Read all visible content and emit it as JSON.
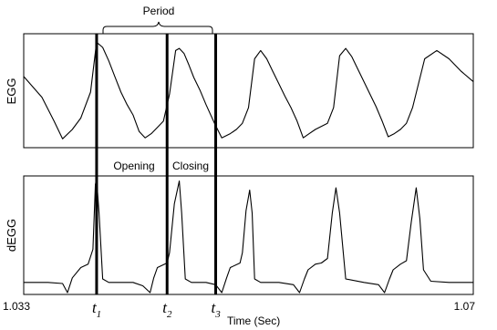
{
  "chart_data": [
    {
      "type": "line",
      "ylabel": "EGG",
      "xlim": [
        1.033,
        1.07
      ],
      "series": [
        {
          "x": [
            1.033,
            1.0345,
            1.0355,
            1.0362,
            1.037,
            1.0377,
            1.0385,
            1.039,
            1.0395,
            1.04,
            1.0405,
            1.041,
            1.0415,
            1.042,
            1.0425,
            1.043,
            1.0435,
            1.044,
            1.0445,
            1.045,
            1.0455,
            1.0458,
            1.0462,
            1.0466,
            1.047,
            1.0475,
            1.048,
            1.0487,
            1.0493,
            1.05,
            1.0505,
            1.051,
            1.0515,
            1.052,
            1.0525,
            1.053,
            1.0535,
            1.054,
            1.0545,
            1.055,
            1.0555,
            1.056,
            1.0565,
            1.057,
            1.058,
            1.0585,
            1.059,
            1.0595,
            1.06,
            1.0605,
            1.061,
            1.0615,
            1.062,
            1.0625,
            1.063,
            1.0635,
            1.064,
            1.0645,
            1.065,
            1.066,
            1.067,
            1.068,
            1.069,
            1.07
          ],
          "values": [
            0.65,
            0.45,
            0.22,
            0.05,
            0.14,
            0.25,
            0.5,
            0.98,
            0.93,
            0.8,
            0.65,
            0.5,
            0.38,
            0.28,
            0.12,
            0.06,
            0.1,
            0.16,
            0.22,
            0.48,
            0.9,
            0.92,
            0.87,
            0.76,
            0.64,
            0.52,
            0.38,
            0.2,
            0.06,
            0.1,
            0.14,
            0.2,
            0.35,
            0.82,
            0.9,
            0.82,
            0.7,
            0.58,
            0.46,
            0.35,
            0.22,
            0.06,
            0.1,
            0.14,
            0.2,
            0.35,
            0.85,
            0.92,
            0.84,
            0.72,
            0.6,
            0.48,
            0.36,
            0.22,
            0.07,
            0.1,
            0.14,
            0.2,
            0.35,
            0.82,
            0.9,
            0.82,
            0.7,
            0.6
          ]
        }
      ]
    },
    {
      "type": "line",
      "xlabel": "Time (Sec)",
      "ylabel": "dEGG",
      "xlim": [
        1.033,
        1.07
      ],
      "series": [
        {
          "x": [
            1.033,
            1.035,
            1.0362,
            1.0366,
            1.037,
            1.0377,
            1.0383,
            1.0387,
            1.0389,
            1.039,
            1.0392,
            1.0395,
            1.04,
            1.042,
            1.0428,
            1.0434,
            1.0437,
            1.044,
            1.0448,
            1.045,
            1.0454,
            1.0458,
            1.046,
            1.0463,
            1.0468,
            1.048,
            1.0488,
            1.0493,
            1.0497,
            1.05,
            1.0508,
            1.051,
            1.0513,
            1.0516,
            1.0518,
            1.052,
            1.0525,
            1.054,
            1.0552,
            1.0557,
            1.0561,
            1.0564,
            1.057,
            1.0575,
            1.058,
            1.0584,
            1.0587,
            1.059,
            1.0595,
            1.061,
            1.0622,
            1.0627,
            1.0631,
            1.0634,
            1.064,
            1.0645,
            1.0649,
            1.0653,
            1.0656,
            1.0659,
            1.0665,
            1.068,
            1.07
          ],
          "values": [
            0.09,
            0.09,
            0.08,
            0.0,
            0.13,
            0.22,
            0.25,
            0.38,
            0.95,
            1.0,
            0.7,
            0.12,
            0.09,
            0.09,
            0.06,
            0.0,
            0.13,
            0.22,
            0.26,
            0.35,
            0.78,
            0.98,
            0.7,
            0.12,
            0.09,
            0.09,
            0.07,
            0.0,
            0.13,
            0.22,
            0.26,
            0.35,
            0.72,
            0.9,
            0.7,
            0.12,
            0.09,
            0.09,
            0.07,
            0.0,
            0.12,
            0.2,
            0.25,
            0.26,
            0.3,
            0.7,
            0.92,
            0.7,
            0.12,
            0.09,
            0.07,
            0.0,
            0.12,
            0.2,
            0.25,
            0.28,
            0.62,
            0.92,
            0.65,
            0.2,
            0.1,
            0.09,
            0.09
          ]
        }
      ]
    }
  ],
  "annotations": {
    "period": "Period",
    "opening": "Opening",
    "closing": "Closing",
    "markers": [
      {
        "base": "t",
        "sub": "1",
        "x": 1.039
      },
      {
        "base": "t",
        "sub": "2",
        "x": 1.0448
      },
      {
        "base": "t",
        "sub": "3",
        "x": 1.0488
      }
    ]
  },
  "axis": {
    "x_min_label": "1.033",
    "x_max_label": "1.07"
  }
}
